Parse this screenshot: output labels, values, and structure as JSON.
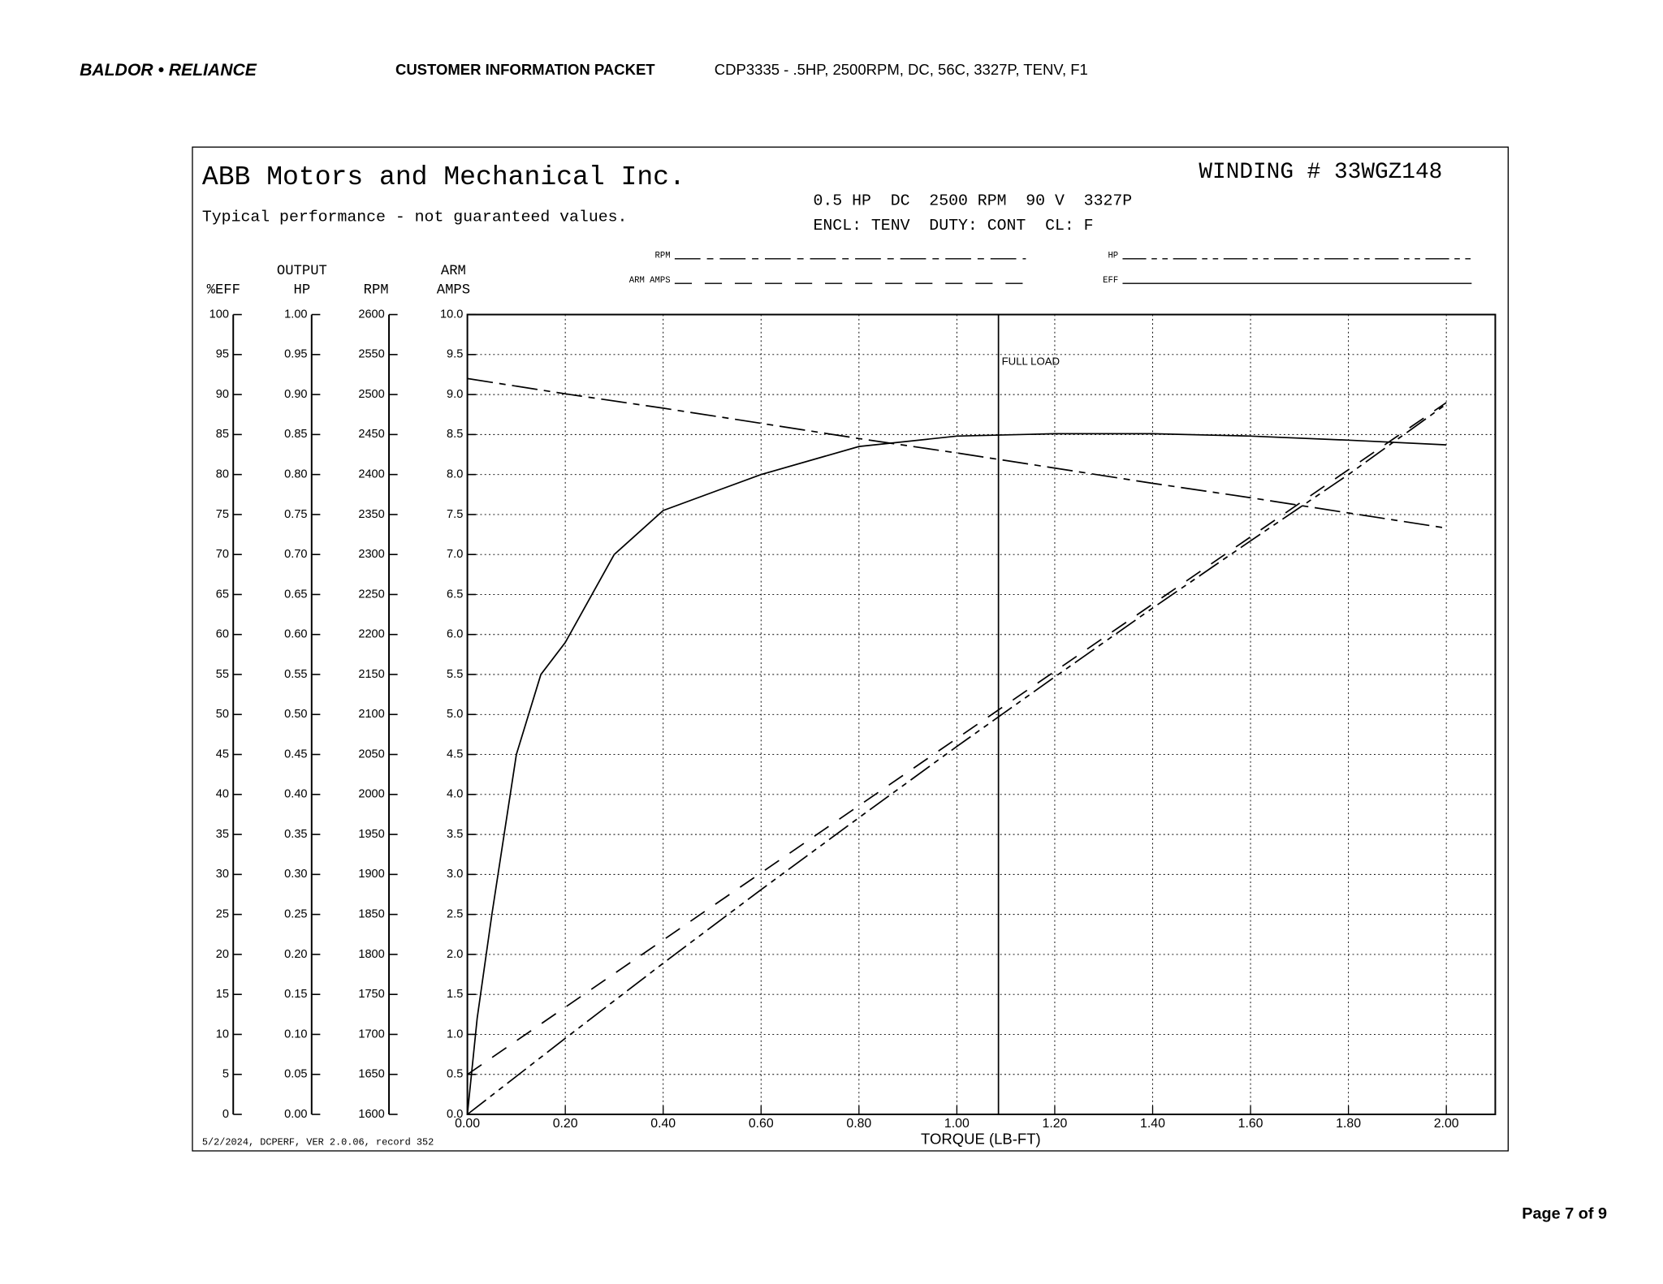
{
  "header": {
    "logo": "BALDOR • RELIANCE",
    "title": "CUSTOMER INFORMATION PACKET",
    "description": "CDP3335 - .5HP, 2500RPM, DC, 56C, 3327P, TENV, F1"
  },
  "footer": {
    "page": "Page 7 of 9"
  },
  "chart_data": {
    "type": "line",
    "title": "ABB Motors and Mechanical Inc.",
    "subtitle": "Typical performance - not guaranteed values.",
    "winding": "WINDING # 33WGZ148",
    "specs": [
      "0.5 HP  DC  2500 RPM  90 V  3327P",
      "ENCL: TENV  DUTY: CONT  CL: F"
    ],
    "footnote": "5/2/2024, DCPERF, VER 2.0.06, record 352",
    "xlabel": "TORQUE (LB-FT)",
    "xlim": [
      0,
      2.1
    ],
    "xticks": [
      {
        "value": 0,
        "label": "0.00"
      },
      {
        "value": 0.2,
        "label": "0.20"
      },
      {
        "value": 0.4,
        "label": "0.40"
      },
      {
        "value": 0.6,
        "label": "0.60"
      },
      {
        "value": 0.8,
        "label": "0.80"
      },
      {
        "value": 1,
        "label": "1.00"
      },
      {
        "value": 1.2,
        "label": "1.20"
      },
      {
        "value": 1.4,
        "label": "1.40"
      },
      {
        "value": 1.6,
        "label": "1.60"
      },
      {
        "value": 1.8,
        "label": "1.80"
      },
      {
        "value": 2,
        "label": "2.00"
      }
    ],
    "grid": true,
    "annotation": {
      "value": 1.085,
      "label": "FULL LOAD"
    },
    "y_axes": [
      {
        "name": [
          "%EFF"
        ],
        "lim": [
          0,
          100
        ],
        "ticks": [
          0,
          5,
          10,
          15,
          20,
          25,
          30,
          35,
          40,
          45,
          50,
          55,
          60,
          65,
          70,
          75,
          80,
          85,
          90,
          95,
          100
        ]
      },
      {
        "name": [
          "OUTPUT",
          "HP"
        ],
        "lim": [
          0,
          1
        ],
        "ticks": [
          {
            "value": 0,
            "label": "0.00"
          },
          0.05,
          {
            "value": 0.1,
            "label": "0.10"
          },
          0.15,
          {
            "value": 0.2,
            "label": "0.20"
          },
          0.25,
          {
            "value": 0.3,
            "label": "0.30"
          },
          0.35,
          {
            "value": 0.4,
            "label": "0.40"
          },
          0.45,
          {
            "value": 0.5,
            "label": "0.50"
          },
          0.55,
          {
            "value": 0.6,
            "label": "0.60"
          },
          0.65,
          {
            "value": 0.7,
            "label": "0.70"
          },
          0.75,
          {
            "value": 0.8,
            "label": "0.80"
          },
          0.85,
          {
            "value": 0.9,
            "label": "0.90"
          },
          0.95,
          {
            "value": 1,
            "label": "1.00"
          }
        ]
      },
      {
        "name": [
          "RPM"
        ],
        "lim": [
          1600,
          2600
        ],
        "ticks": [
          1600,
          1650,
          1700,
          1750,
          1800,
          1850,
          1900,
          1950,
          2000,
          2050,
          2100,
          2150,
          2200,
          2250,
          2300,
          2350,
          2400,
          2450,
          2500,
          2550,
          2600
        ]
      },
      {
        "name": [
          "ARM",
          "AMPS"
        ],
        "lim": [
          0,
          10
        ],
        "ticks": [
          {
            "value": 0,
            "label": "0.0"
          },
          0.5,
          {
            "value": 1,
            "label": "1.0"
          },
          1.5,
          {
            "value": 2,
            "label": "2.0"
          },
          2.5,
          {
            "value": 3,
            "label": "3.0"
          },
          3.5,
          {
            "value": 4,
            "label": "4.0"
          },
          4.5,
          {
            "value": 5,
            "label": "5.0"
          },
          5.5,
          {
            "value": 6,
            "label": "6.0"
          },
          6.5,
          {
            "value": 7,
            "label": "7.0"
          },
          7.5,
          {
            "value": 8,
            "label": "8.0"
          },
          8.5,
          {
            "value": 9,
            "label": "9.0"
          },
          9.5,
          {
            "value": 10,
            "label": "10.0"
          }
        ]
      }
    ],
    "series": [
      {
        "name": "RPM",
        "color": "#000000",
        "axis": 2,
        "x": [
          0,
          0.2,
          0.4,
          0.6,
          0.8,
          1,
          1.2,
          1.4,
          1.6,
          1.8,
          2
        ],
        "values": [
          2520,
          2501,
          2483,
          2464,
          2445,
          2427,
          2408,
          2389,
          2371,
          2352,
          2333
        ]
      },
      {
        "name": "ARM AMPS",
        "color": "#000000",
        "axis": 3,
        "x": [
          0,
          0.2,
          0.4,
          0.6,
          0.8,
          1,
          1.2,
          1.4,
          1.6,
          1.8,
          2
        ],
        "values": [
          0.5,
          1.34,
          2.18,
          3.02,
          3.86,
          4.7,
          5.54,
          6.38,
          7.22,
          8.06,
          8.9
        ]
      },
      {
        "name": "HP",
        "color": "#000000",
        "axis": 1,
        "x": [
          0,
          0.2,
          0.4,
          0.6,
          0.8,
          1,
          1.2,
          1.4,
          1.6,
          1.8,
          2
        ],
        "values": [
          0,
          0.095,
          0.189,
          0.281,
          0.371,
          0.46,
          0.547,
          0.633,
          0.717,
          0.8,
          0.888
        ]
      },
      {
        "name": "EFF",
        "color": "#000000",
        "axis": 0,
        "x": [
          0,
          0.02,
          0.05,
          0.1,
          0.15,
          0.2,
          0.3,
          0.4,
          0.6,
          0.8,
          1,
          1.2,
          1.4,
          1.6,
          1.8,
          2
        ],
        "values": [
          0,
          12,
          25,
          45,
          55,
          59,
          70,
          75.5,
          80,
          83.5,
          84.8,
          85.1,
          85.1,
          84.8,
          84.3,
          83.7
        ]
      }
    ]
  }
}
